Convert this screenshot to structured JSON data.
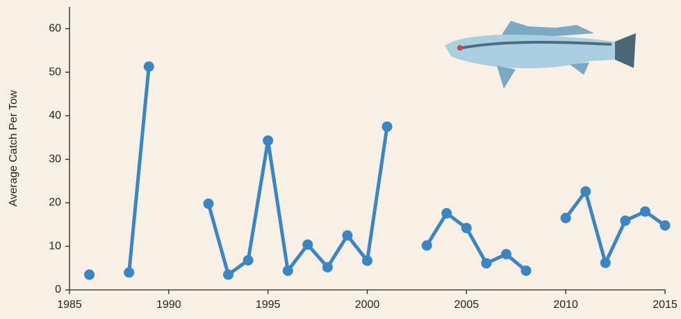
{
  "chart_data": {
    "type": "line",
    "y_label": "Average Catch Per Tow",
    "x": [
      1986,
      1987,
      1988,
      1989,
      1990,
      1991,
      1992,
      1993,
      1994,
      1995,
      1996,
      1997,
      1998,
      1999,
      2000,
      2001,
      2002,
      2003,
      2004,
      2005,
      2006,
      2007,
      2008,
      2009,
      2010,
      2011,
      2012,
      2013,
      2014,
      2015
    ],
    "series": [
      {
        "color": "#3a85c4",
        "values": [
          3.5,
          null,
          4,
          51.3,
          null,
          null,
          19.8,
          3.5,
          6.8,
          34.3,
          4.4,
          10.4,
          5.2,
          12.5,
          6.7,
          37.5,
          null,
          10.2,
          17.6,
          14.2,
          6.1,
          8.2,
          4.4,
          null,
          16.5,
          22.6,
          6.2,
          15.9,
          18.0,
          14.8
        ]
      }
    ],
    "xlim": [
      1985,
      2015
    ],
    "xticks": [
      1985,
      1990,
      1995,
      2000,
      2005,
      2010,
      2015
    ],
    "ylim": [
      0,
      65
    ],
    "yticks": [
      0,
      10,
      20,
      30,
      40,
      50,
      60
    ]
  }
}
